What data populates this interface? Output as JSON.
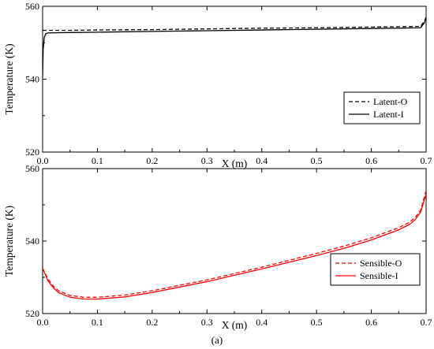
{
  "caption": "(a)",
  "chart_data": [
    {
      "type": "line",
      "xlabel": "X (m)",
      "ylabel": "Temperature (K)",
      "xlim": [
        0.0,
        0.7
      ],
      "ylim": [
        520,
        560
      ],
      "xticks": [
        "0.0",
        "0.1",
        "0.2",
        "0.3",
        "0.4",
        "0.5",
        "0.6",
        "0.7"
      ],
      "yticks": [
        "520",
        "540",
        "560"
      ],
      "grid": false,
      "legend_position": "bottom-right",
      "series": [
        {
          "name": "Latent-O",
          "color": "#000000",
          "dash": "dashed",
          "x": [
            0.0,
            0.005,
            0.01,
            0.05,
            0.1,
            0.2,
            0.3,
            0.4,
            0.5,
            0.6,
            0.65,
            0.69,
            0.697,
            0.7
          ],
          "y": [
            553.4,
            553.4,
            553.4,
            553.4,
            553.5,
            553.6,
            553.8,
            554.0,
            554.1,
            554.3,
            554.4,
            554.5,
            556.0,
            557.0
          ]
        },
        {
          "name": "Latent-I",
          "color": "#000000",
          "dash": "solid",
          "x": [
            0.0,
            0.001,
            0.003,
            0.006,
            0.01,
            0.05,
            0.1,
            0.2,
            0.3,
            0.4,
            0.5,
            0.6,
            0.65,
            0.69,
            0.697,
            0.7
          ],
          "y": [
            540.5,
            548.0,
            551.5,
            552.5,
            552.7,
            552.8,
            552.9,
            553.1,
            553.3,
            553.5,
            553.7,
            553.9,
            554.0,
            554.1,
            555.5,
            557.0
          ]
        }
      ]
    },
    {
      "type": "line",
      "xlabel": "X (m)",
      "ylabel": "Temperature (K)",
      "xlim": [
        0.0,
        0.7
      ],
      "ylim": [
        520,
        560
      ],
      "xticks": [
        "0.0",
        "0.1",
        "0.2",
        "0.3",
        "0.4",
        "0.5",
        "0.6",
        "0.7"
      ],
      "yticks": [
        "520",
        "540",
        "560"
      ],
      "grid": false,
      "legend_position": "bottom-right",
      "series": [
        {
          "name": "Sensible-O",
          "color": "#ff0000",
          "dash": "dashed",
          "x": [
            0.0,
            0.01,
            0.02,
            0.03,
            0.05,
            0.075,
            0.1,
            0.15,
            0.2,
            0.3,
            0.4,
            0.5,
            0.55,
            0.6,
            0.65,
            0.67,
            0.68,
            0.69,
            0.7
          ],
          "y": [
            532.5,
            529.5,
            527.5,
            526.2,
            525.0,
            524.5,
            524.5,
            525.1,
            526.3,
            529.3,
            532.8,
            536.6,
            538.6,
            540.9,
            543.7,
            545.2,
            546.5,
            548.5,
            554.0
          ]
        },
        {
          "name": "Sensible-I",
          "color": "#ff0000",
          "dash": "solid",
          "x": [
            0.0,
            0.01,
            0.02,
            0.03,
            0.05,
            0.075,
            0.1,
            0.15,
            0.2,
            0.3,
            0.4,
            0.5,
            0.55,
            0.6,
            0.65,
            0.67,
            0.68,
            0.69,
            0.7
          ],
          "y": [
            532.5,
            529.0,
            527.0,
            525.7,
            524.5,
            524.0,
            524.0,
            524.6,
            525.8,
            528.8,
            532.3,
            536.0,
            538.0,
            540.3,
            543.1,
            544.6,
            545.9,
            548.0,
            553.0
          ]
        }
      ]
    }
  ]
}
